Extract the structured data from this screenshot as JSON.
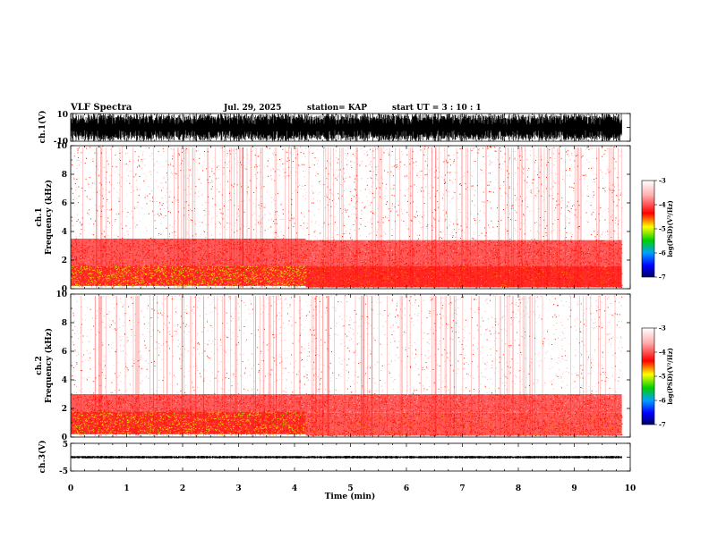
{
  "header": {
    "title": "VLF Spectra",
    "date": "Jul. 29, 2025",
    "station": "station= KAP",
    "start": "start UT =  3 : 10 : 1"
  },
  "panels": {
    "ch1_wave": {
      "ylabel": "ch.1(V)",
      "ticks": [
        "10",
        "-10"
      ]
    },
    "ch1_spec": {
      "ylabel1": "ch.1",
      "ylabel2": "Frequency (kHz)"
    },
    "ch2_spec": {
      "ylabel1": "ch.2",
      "ylabel2": "Frequency (kHz)"
    },
    "ch3_wave": {
      "ylabel": "ch.3(V)",
      "ticks": [
        "5",
        "-5"
      ]
    },
    "colorbar1": {
      "label": "log(PSD)(V²/Hz)",
      "ticks": [
        "-3",
        "-4",
        "-5",
        "-6",
        "-7"
      ]
    },
    "colorbar2": {
      "label": "log(PSD)(V²/Hz)",
      "ticks": [
        "-3",
        "-4",
        "-5",
        "-6",
        "-7"
      ]
    }
  },
  "chart_data": {
    "type": "heatmap",
    "title": "VLF Spectra",
    "xlabel": "Time (min)",
    "x_ticks": [
      0,
      1,
      2,
      3,
      4,
      5,
      6,
      7,
      8,
      9,
      10
    ],
    "xlim": [
      0,
      10
    ],
    "data_end_min": 9.85,
    "regime_change_min": 4.2,
    "freq_ticks_khz": [
      0,
      2,
      4,
      6,
      8,
      10
    ],
    "freq_range_khz": [
      0,
      10
    ],
    "psd_scale": {
      "min": -7,
      "max": -3,
      "unit": "log(PSD)(V²/Hz)"
    },
    "spectrograms": [
      {
        "channel": "ch.1",
        "bands_before": [
          {
            "f_lo": 0.0,
            "f_hi": 0.2,
            "level": "white"
          },
          {
            "f_lo": 0.2,
            "f_hi": 1.6,
            "level": -4.4
          },
          {
            "f_lo": 1.6,
            "f_hi": 3.5,
            "level": -3.9
          },
          {
            "f_lo": 3.5,
            "f_hi": 10.0,
            "level": -3.3
          }
        ],
        "bands_after": [
          {
            "f_lo": 0.0,
            "f_hi": 0.1,
            "level": "white"
          },
          {
            "f_lo": 0.1,
            "f_hi": 1.6,
            "level": -4.1
          },
          {
            "f_lo": 1.6,
            "f_hi": 3.4,
            "level": -3.8
          },
          {
            "f_lo": 3.4,
            "f_hi": 10.0,
            "level": -3.3
          }
        ]
      },
      {
        "channel": "ch.2",
        "bands_before": [
          {
            "f_lo": 0.0,
            "f_hi": 0.2,
            "level": "white"
          },
          {
            "f_lo": 0.2,
            "f_hi": 1.8,
            "level": -4.2
          },
          {
            "f_lo": 1.8,
            "f_hi": 3.0,
            "level": -3.8
          },
          {
            "f_lo": 3.0,
            "f_hi": 10.0,
            "level": -3.2
          }
        ],
        "bands_after": [
          {
            "f_lo": 0.0,
            "f_hi": 0.1,
            "level": "white"
          },
          {
            "f_lo": 0.1,
            "f_hi": 1.7,
            "level": -3.9
          },
          {
            "f_lo": 1.7,
            "f_hi": 3.0,
            "level": -3.7
          },
          {
            "f_lo": 3.0,
            "f_hi": 10.0,
            "level": -3.2
          }
        ]
      }
    ],
    "waveforms": [
      {
        "channel": "ch.1",
        "unit": "V",
        "ylim": [
          -10,
          10
        ],
        "typical_amplitude": 10
      },
      {
        "channel": "ch.3",
        "unit": "V",
        "ylim": [
          -5,
          5
        ],
        "typical_amplitude": 0.5
      }
    ],
    "colors": {
      "low_white": "#ffffff",
      "red": "#ff0000",
      "yellow": "#ffff00",
      "green": "#00c800",
      "blue": "#0000ff"
    }
  }
}
